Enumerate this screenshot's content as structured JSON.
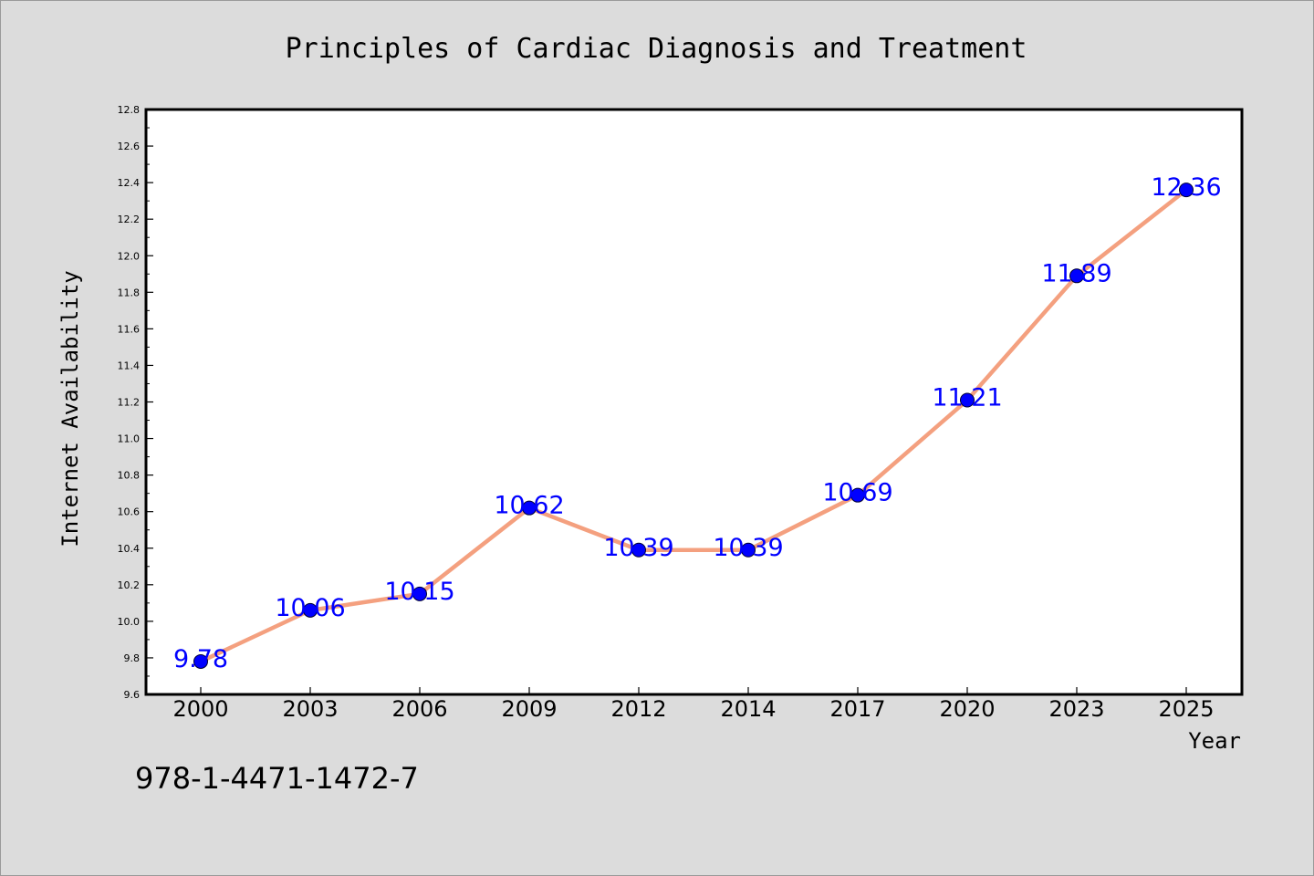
{
  "chart_data": {
    "type": "line",
    "title": "Principles of Cardiac Diagnosis and Treatment",
    "xlabel": "Year",
    "ylabel": "Internet Availability",
    "categories": [
      "2000",
      "2003",
      "2006",
      "2009",
      "2012",
      "2014",
      "2017",
      "2020",
      "2023",
      "2025"
    ],
    "series": [
      {
        "values": [
          9.78,
          10.06,
          10.15,
          10.62,
          10.39,
          10.39,
          10.69,
          11.21,
          11.89,
          12.36
        ]
      }
    ],
    "data_labels": [
      "9.78",
      "10.06",
      "10.15",
      "10.62",
      "10.39",
      "10.39",
      "10.69",
      "11.21",
      "11.89",
      "12.36"
    ],
    "ylim": [
      9.6,
      12.8
    ],
    "y_ticks": [
      "9.6",
      "9.8",
      "10.0",
      "10.2",
      "10.4",
      "10.6",
      "10.8",
      "11.0",
      "11.2",
      "11.4",
      "11.6",
      "11.8",
      "12.0",
      "12.2",
      "12.4",
      "12.6",
      "12.8"
    ],
    "grid": false,
    "line_color": "#f4a07f",
    "marker_color": "#0000ff",
    "label_color": "#0000ff",
    "background_color": "#dcdcdc",
    "plot_background_color": "#ffffff"
  },
  "footer": {
    "isbn": "978-1-4471-1472-7"
  }
}
